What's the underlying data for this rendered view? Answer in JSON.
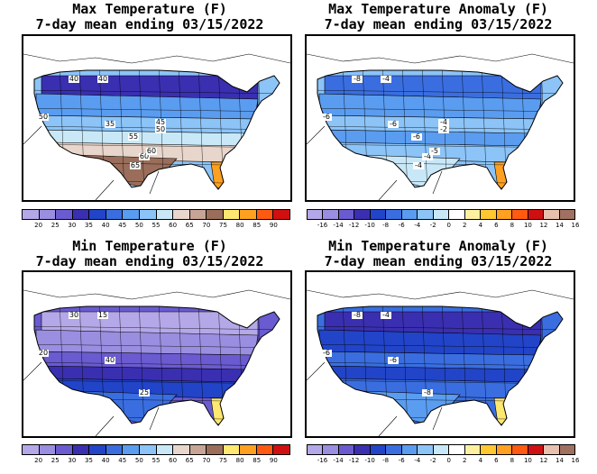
{
  "panels": [
    {
      "id": "max-temp",
      "title_line1": "Max Temperature (F)",
      "title_line2": "7-day mean ending 03/15/2022",
      "legend_ticks": [
        "20",
        "25",
        "30",
        "35",
        "40",
        "45",
        "50",
        "55",
        "60",
        "65",
        "70",
        "75",
        "80",
        "85",
        "90"
      ],
      "legend_colors": [
        "#b5a8e8",
        "#9a8ee0",
        "#6a5bd0",
        "#3a2fb0",
        "#2244c8",
        "#3a6ee0",
        "#5a9cf0",
        "#8cc4f8",
        "#c8e8f8",
        "#e8d6cc",
        "#c8a496",
        "#9a6e5a",
        "#ffe870",
        "#ffa020",
        "#ff5a10",
        "#d01010"
      ],
      "map_colors": {
        "north": "#3a2fb0",
        "upper": "#5a9cf0",
        "mid": "#8cc4f8",
        "lower": "#c8e8f8",
        "south": "#e8d6cc",
        "deep_south": "#9a6e5a",
        "florida": "#ffa020"
      },
      "contour_labels": [
        "40",
        "40",
        "50",
        "60",
        "35",
        "45",
        "50",
        "55",
        "60",
        "65"
      ]
    },
    {
      "id": "max-anom",
      "title_line1": "Max Temperature Anomaly (F)",
      "title_line2": "7-day mean ending 03/15/2022",
      "legend_ticks": [
        "-16",
        "-14",
        "-12",
        "-10",
        "-8",
        "-6",
        "-4",
        "-2",
        "0",
        "2",
        "4",
        "6",
        "8",
        "10",
        "12",
        "14",
        "16"
      ],
      "legend_colors": [
        "#b5a8e8",
        "#9a8ee0",
        "#6a5bd0",
        "#3a2fb0",
        "#2244c8",
        "#3a6ee0",
        "#5a9cf0",
        "#8cc4f8",
        "#c8e8f8",
        "#ffffff",
        "#fff0a0",
        "#ffc830",
        "#ffa020",
        "#ff5a10",
        "#d01010",
        "#e8c0b0",
        "#a07060"
      ],
      "map_colors": {
        "north": "#3a6ee0",
        "upper": "#5a9cf0",
        "mid": "#8cc4f8",
        "lower": "#5a9cf0",
        "south": "#8cc4f8",
        "deep_south": "#c8e8f8",
        "florida": "#ffa020"
      },
      "contour_labels": [
        "-8",
        "-4",
        "-6",
        "-4",
        "-6",
        "-4",
        "-2",
        "-6",
        "-5",
        "-4"
      ]
    },
    {
      "id": "min-temp",
      "title_line1": "Min Temperature (F)",
      "title_line2": "7-day mean ending 03/15/2022",
      "legend_ticks": [
        "20",
        "25",
        "30",
        "35",
        "40",
        "45",
        "50",
        "55",
        "60",
        "65",
        "70",
        "75",
        "80",
        "85",
        "90"
      ],
      "legend_colors": [
        "#b5a8e8",
        "#9a8ee0",
        "#6a5bd0",
        "#3a2fb0",
        "#2244c8",
        "#3a6ee0",
        "#5a9cf0",
        "#8cc4f8",
        "#c8e8f8",
        "#e8d6cc",
        "#c8a496",
        "#9a6e5a",
        "#ffe870",
        "#ffa020",
        "#ff5a10",
        "#d01010"
      ],
      "map_colors": {
        "north": "#b5a8e8",
        "upper": "#9a8ee0",
        "mid": "#6a5bd0",
        "lower": "#3a2fb0",
        "south": "#2244c8",
        "deep_south": "#3a6ee0",
        "florida": "#ffe870"
      },
      "contour_labels": [
        "30",
        "15",
        "20",
        "25",
        "40"
      ]
    },
    {
      "id": "min-anom",
      "title_line1": "Min Temperature Anomaly (F)",
      "title_line2": "7-day mean ending 03/15/2022",
      "legend_ticks": [
        "-16",
        "-14",
        "-12",
        "-10",
        "-8",
        "-6",
        "-4",
        "-2",
        "0",
        "2",
        "4",
        "6",
        "8",
        "10",
        "12",
        "14",
        "16"
      ],
      "legend_colors": [
        "#b5a8e8",
        "#9a8ee0",
        "#6a5bd0",
        "#3a2fb0",
        "#2244c8",
        "#3a6ee0",
        "#5a9cf0",
        "#8cc4f8",
        "#c8e8f8",
        "#ffffff",
        "#fff0a0",
        "#ffc830",
        "#ffa020",
        "#ff5a10",
        "#d01010",
        "#e8c0b0",
        "#a07060"
      ],
      "map_colors": {
        "north": "#3a2fb0",
        "upper": "#2244c8",
        "mid": "#3a6ee0",
        "lower": "#2244c8",
        "south": "#3a6ee0",
        "deep_south": "#5a9cf0",
        "florida": "#ffe870"
      },
      "contour_labels": [
        "-8",
        "-4",
        "-6",
        "-8",
        "-6"
      ]
    }
  ]
}
